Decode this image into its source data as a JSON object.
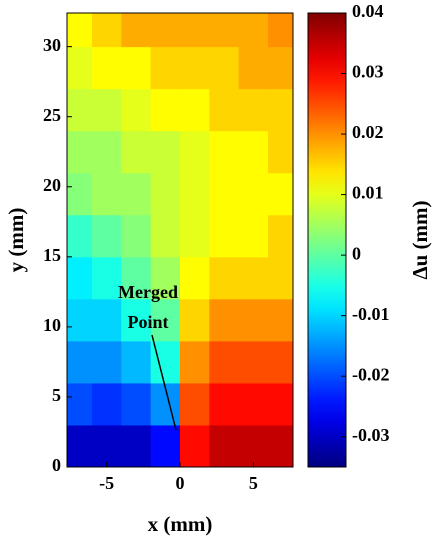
{
  "chart_data": {
    "type": "contour",
    "xlabel": "x (mm)",
    "ylabel": "y (mm)",
    "colorbar_label": "Δu (mm)",
    "annotation": [
      "Merged",
      "Point"
    ],
    "colormap": "jet",
    "xlim": [
      -7.7,
      7.7
    ],
    "ylim": [
      0,
      32.4
    ],
    "xticks": [
      -5,
      0,
      5
    ],
    "yticks": [
      0,
      5,
      10,
      15,
      20,
      25,
      30
    ],
    "clim": [
      -0.035,
      0.04
    ],
    "cticks": [
      -0.03,
      -0.02,
      -0.01,
      0,
      0.01,
      0.02,
      0.03,
      0.04
    ],
    "xedges": [
      -8,
      -6,
      -4,
      -2,
      0,
      2,
      4,
      6,
      8
    ],
    "yedges": [
      0,
      3,
      6,
      9,
      12,
      15,
      18,
      21,
      24,
      27,
      30,
      33
    ],
    "z": [
      [
        -0.03,
        -0.03,
        -0.03,
        -0.025,
        0.03,
        0.035,
        0.035,
        0.035
      ],
      [
        -0.02,
        -0.022,
        -0.02,
        -0.015,
        0.025,
        0.03,
        0.03,
        0.03
      ],
      [
        -0.015,
        -0.015,
        -0.012,
        -0.005,
        0.02,
        0.025,
        0.025,
        0.025
      ],
      [
        -0.01,
        -0.01,
        -0.005,
        0,
        0.015,
        0.02,
        0.02,
        0.02
      ],
      [
        -0.008,
        -0.005,
        0,
        0.005,
        0.012,
        0.015,
        0.015,
        0.015
      ],
      [
        -0.003,
        0,
        0.003,
        0.008,
        0.01,
        0.012,
        0.012,
        0.015
      ],
      [
        0.003,
        0.005,
        0.005,
        0.008,
        0.01,
        0.012,
        0.012,
        0.012
      ],
      [
        0.005,
        0.005,
        0.008,
        0.008,
        0.01,
        0.012,
        0.012,
        0.015
      ],
      [
        0.008,
        0.008,
        0.01,
        0.012,
        0.012,
        0.015,
        0.015,
        0.015
      ],
      [
        0.01,
        0.012,
        0.012,
        0.015,
        0.015,
        0.015,
        0.018,
        0.018
      ],
      [
        0.012,
        0.015,
        0.018,
        0.018,
        0.018,
        0.018,
        0.018,
        0.02
      ]
    ]
  }
}
